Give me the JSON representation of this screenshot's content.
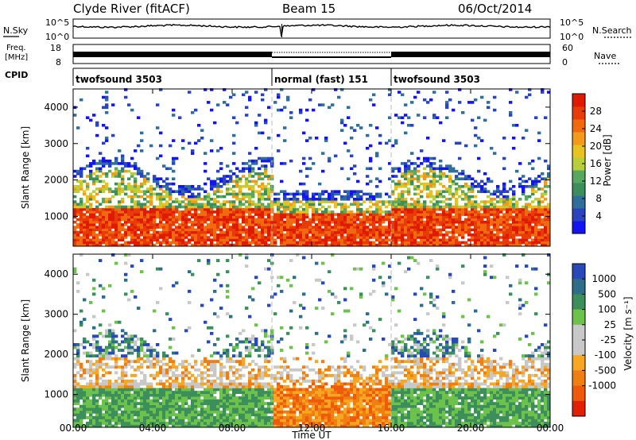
{
  "header": {
    "station": "Clyde River (fitACF)",
    "beam": "Beam 15",
    "date": "06/Oct/2014"
  },
  "noise_panel": {
    "left_label": "N.Sky",
    "right_label": "N.Search",
    "left_ticks": [
      "10^5",
      "10^0"
    ],
    "right_ticks": [
      "10^5",
      "10^0"
    ]
  },
  "freq_panel": {
    "left_label_1": "Freq.",
    "left_label_2": "[MHz]",
    "right_label": "Nave",
    "left_ticks": [
      "18",
      "8"
    ],
    "right_ticks": [
      "60",
      "0"
    ]
  },
  "cpid_panel": {
    "label": "CPID",
    "segments": [
      {
        "name": "twofsound 3503",
        "start_hour": 0,
        "end_hour": 10
      },
      {
        "name": "normal (fast) 151",
        "start_hour": 10,
        "end_hour": 16
      },
      {
        "name": "twofsound 3503",
        "start_hour": 16,
        "end_hour": 24
      }
    ]
  },
  "chart_data": [
    {
      "type": "heatmap",
      "name": "power",
      "ylabel": "Slant Range [km]",
      "ylim": [
        180,
        4500
      ],
      "y_ticks": [
        1000,
        2000,
        3000,
        4000
      ],
      "x_range_hours": [
        0,
        24
      ],
      "colorbar": {
        "label": "Power [dB]",
        "range": [
          0,
          32
        ],
        "ticks": [
          4,
          8,
          12,
          16,
          20,
          24,
          28
        ],
        "colors": [
          "#1414f0",
          "#2a44c0",
          "#2f6f9a",
          "#3c8e5a",
          "#59a85f",
          "#b8cf3b",
          "#e8c21e",
          "#f29a1a",
          "#f06a10",
          "#e83c08",
          "#e01a00"
        ]
      }
    },
    {
      "type": "heatmap",
      "name": "velocity",
      "ylabel": "Slant Range [km]",
      "ylim": [
        180,
        4500
      ],
      "y_ticks": [
        1000,
        2000,
        3000,
        4000
      ],
      "x_range_hours": [
        0,
        24
      ],
      "colorbar": {
        "label": "Velocity [m s⁻¹]",
        "tick_labels": [
          "1000",
          "500",
          "100",
          "25",
          "-25",
          "-100",
          "-500",
          "-1000"
        ],
        "colors": [
          "#2a49b8",
          "#2f6e8a",
          "#3c8e5a",
          "#6cc24a",
          "#c8c8c8",
          "#c8c8c8",
          "#f5a623",
          "#f07f12",
          "#ee5a0a",
          "#e02000"
        ]
      }
    }
  ],
  "x_axis": {
    "label": "Time UT",
    "tick_labels": [
      "00:00",
      "04:00",
      "08:00",
      "12:00",
      "16:00",
      "20:00",
      "00:00"
    ]
  }
}
